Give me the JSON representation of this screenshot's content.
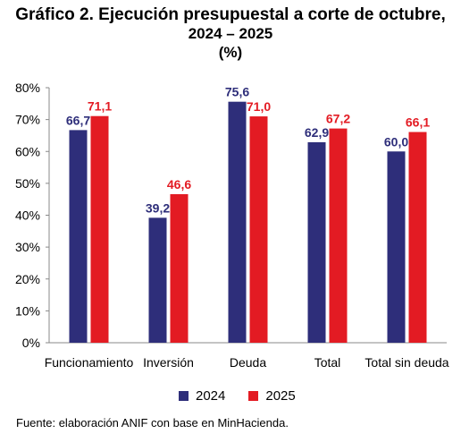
{
  "title": {
    "line1": "Gráfico 2. Ejecución presupuestal a corte de octubre,",
    "line2": "2024 – 2025",
    "line3": "(%)"
  },
  "chart_data": {
    "type": "bar",
    "categories": [
      "Funcionamiento",
      "Inversión",
      "Deuda",
      "Total",
      "Total sin deuda"
    ],
    "series": [
      {
        "name": "2024",
        "values": [
          66.7,
          39.2,
          75.6,
          62.9,
          60.0
        ],
        "labels": [
          "66,7",
          "39,2",
          "75,6",
          "62,9",
          "60,0"
        ],
        "color": "#2e2e7a"
      },
      {
        "name": "2025",
        "values": [
          71.1,
          46.6,
          71.0,
          67.2,
          66.1
        ],
        "labels": [
          "71,1",
          "46,6",
          "71,0",
          "67,2",
          "66,1"
        ],
        "color": "#e31b23"
      }
    ],
    "ylim": [
      0,
      80
    ],
    "yticks": [
      "0%",
      "10%",
      "20%",
      "30%",
      "40%",
      "50%",
      "60%",
      "70%",
      "80%"
    ],
    "grid": false,
    "legend": "bottom"
  },
  "source": "Fuente: elaboración ANIF con base en MinHacienda."
}
